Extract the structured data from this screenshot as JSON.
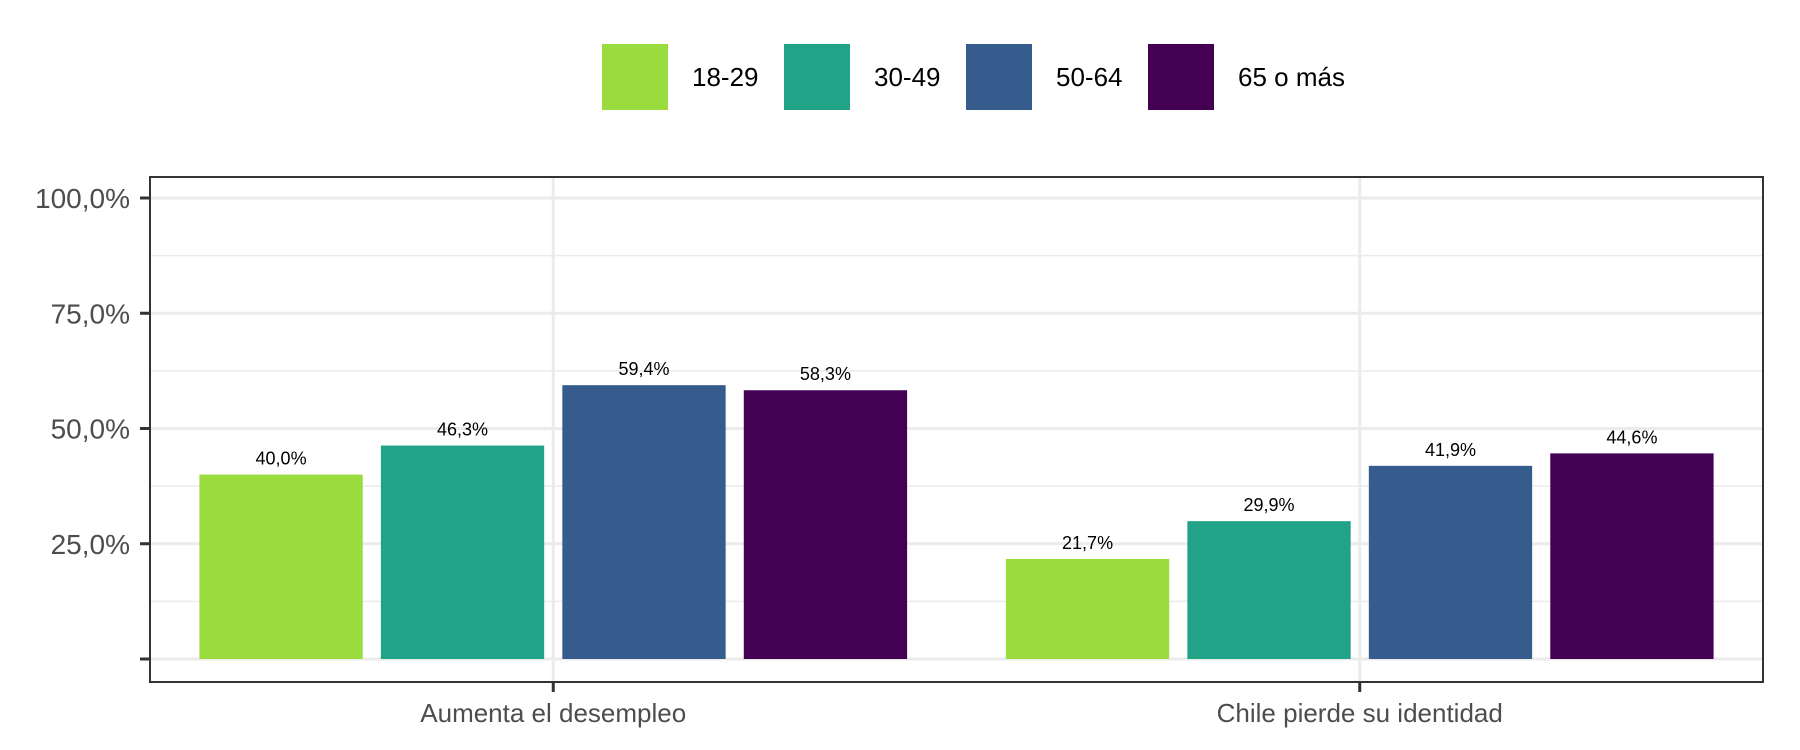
{
  "chart_data": {
    "type": "bar",
    "categories": [
      "Aumenta el desempleo",
      "Chile pierde su identidad"
    ],
    "series": [
      {
        "name": "18-29",
        "values": [
          40.0,
          21.7
        ],
        "labels": [
          "40,0%",
          "21,7%"
        ],
        "color": "#9ADB3E"
      },
      {
        "name": "30-49",
        "values": [
          46.3,
          29.9
        ],
        "labels": [
          "46,3%",
          "29,9%"
        ],
        "color": "#20A387"
      },
      {
        "name": "50-64",
        "values": [
          59.4,
          41.9
        ],
        "labels": [
          "59,4%",
          "41,9%"
        ],
        "color": "#365C8D"
      },
      {
        "name": "65 o más",
        "values": [
          58.3,
          44.6
        ],
        "labels": [
          "58,3%",
          "44,6%"
        ],
        "color": "#440154"
      }
    ],
    "ylim": [
      0,
      100
    ],
    "yticks": [
      0,
      25,
      50,
      75,
      100
    ],
    "ytick_labels": [
      "",
      "25,0%",
      "50,0%",
      "75,0%",
      "100,0%"
    ],
    "title": "",
    "xlabel": "",
    "ylabel": "",
    "grid": true,
    "legend_position": "top"
  }
}
